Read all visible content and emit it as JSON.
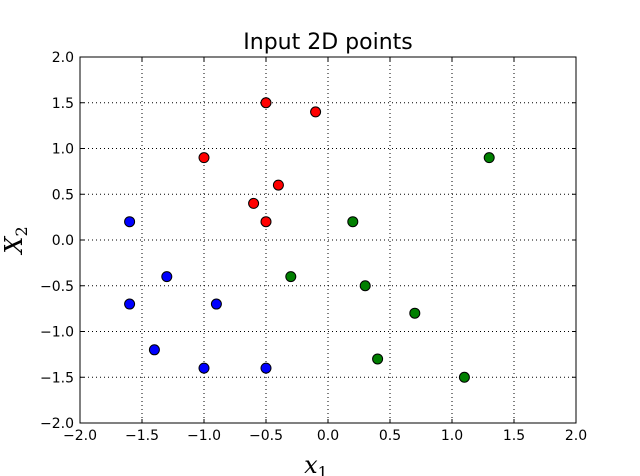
{
  "chart_data": {
    "type": "scatter",
    "title": "Input 2D points",
    "xlabel": {
      "main": "x",
      "sub": "1"
    },
    "ylabel": {
      "main": "X",
      "sub": "2"
    },
    "xlim": [
      -2.0,
      2.0
    ],
    "ylim": [
      -2.0,
      2.0
    ],
    "x_ticks": [
      "−2.0",
      "−1.5",
      "−1.0",
      "−0.5",
      "0.0",
      "0.5",
      "1.0",
      "1.5",
      "2.0"
    ],
    "y_ticks": [
      "−2.0",
      "−1.5",
      "−1.0",
      "−0.5",
      "0.0",
      "0.5",
      "1.0",
      "1.5",
      "2.0"
    ],
    "grid": true,
    "series": [
      {
        "color": "#ff0000",
        "points": [
          [
            -0.5,
            1.5
          ],
          [
            -0.1,
            1.4
          ],
          [
            -1.0,
            0.9
          ],
          [
            -0.4,
            0.6
          ],
          [
            -0.6,
            0.4
          ],
          [
            -0.5,
            0.2
          ]
        ]
      },
      {
        "color": "#0000ff",
        "points": [
          [
            -1.6,
            0.2
          ],
          [
            -1.3,
            -0.4
          ],
          [
            -1.6,
            -0.7
          ],
          [
            -0.9,
            -0.7
          ],
          [
            -1.4,
            -1.2
          ],
          [
            -1.0,
            -1.4
          ],
          [
            -0.5,
            -1.4
          ]
        ]
      },
      {
        "color": "#007f00",
        "points": [
          [
            1.3,
            0.9
          ],
          [
            0.2,
            0.2
          ],
          [
            -0.3,
            -0.4
          ],
          [
            0.3,
            -0.5
          ],
          [
            0.7,
            -0.8
          ],
          [
            0.4,
            -1.3
          ],
          [
            1.1,
            -1.5
          ]
        ]
      }
    ]
  }
}
